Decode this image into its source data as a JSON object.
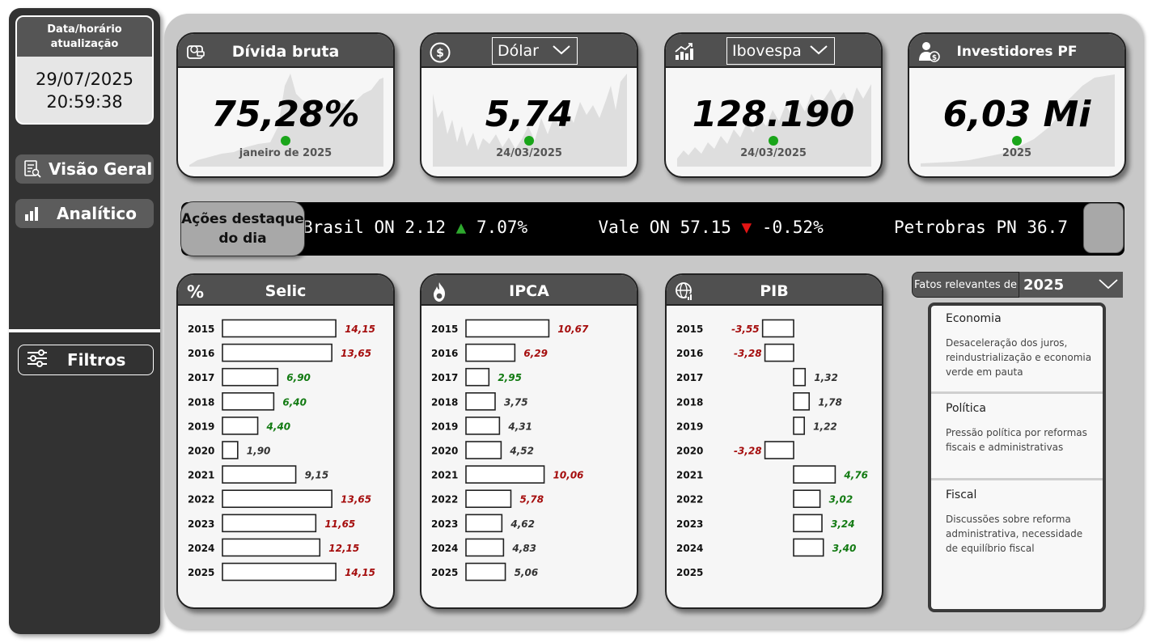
{
  "sidebar": {
    "update_title": "Data/horário atualização",
    "update_title_l1": "Data/horário",
    "update_title_l2": "atualização",
    "date": "29/07/2025",
    "time": "20:59:38",
    "nav": [
      {
        "label": "Visão Geral",
        "icon": "report-search-icon"
      },
      {
        "label": "Analítico",
        "icon": "bar-chart-icon"
      }
    ],
    "filters_label": "Filtros"
  },
  "kpis": [
    {
      "title": "Dívida bruta",
      "value": "75,28%",
      "sub": "janeiro de 2025",
      "icon": "debt-wallet-icon"
    },
    {
      "title": "Dólar",
      "value": "5,74",
      "sub": "24/03/2025",
      "icon": "dollar-coin-icon",
      "dropdown": true
    },
    {
      "title": "Ibovespa",
      "value": "128.190",
      "sub": "24/03/2025",
      "icon": "growth-chart-icon",
      "dropdown": true
    },
    {
      "title": "Investidores PF",
      "value": "6,03 Mi",
      "sub": "2025",
      "icon": "investor-icon"
    }
  ],
  "ticker": {
    "label_l1": "Ações destaque",
    "label_l2": "do dia",
    "items": [
      {
        "text": "Brasil ON 2.12",
        "arrow": "▲",
        "change": "7.07%",
        "dir": "up"
      },
      {
        "text": "Vale ON 57.15",
        "arrow": "▼",
        "change": "-0.52%",
        "dir": "down"
      },
      {
        "text": "Petrobras PN 36.7",
        "arrow": "",
        "change": "",
        "dir": "none"
      }
    ]
  },
  "colors": {
    "high": "#a50d0d",
    "low": "#127a12",
    "neutral": "#333333"
  },
  "bar_charts": [
    {
      "title": "Selic",
      "icon": "percent-icon",
      "years": [
        "2015",
        "2016",
        "2017",
        "2018",
        "2019",
        "2020",
        "2021",
        "2022",
        "2023",
        "2024",
        "2025"
      ],
      "values": [
        14.15,
        13.65,
        6.9,
        6.4,
        4.4,
        1.9,
        9.15,
        13.65,
        11.65,
        12.15,
        14.15
      ],
      "labels": [
        "14,15",
        "13,65",
        "6,90",
        "6,40",
        "4,40",
        "1,90",
        "9,15",
        "13,65",
        "11,65",
        "12,15",
        "14,15"
      ],
      "tones": [
        "high",
        "high",
        "low",
        "low",
        "low",
        "neutral",
        "neutral",
        "high",
        "high",
        "high",
        "high"
      ]
    },
    {
      "title": "IPCA",
      "icon": "fire-coin-icon",
      "years": [
        "2015",
        "2016",
        "2017",
        "2018",
        "2019",
        "2020",
        "2021",
        "2022",
        "2023",
        "2024",
        "2025"
      ],
      "values": [
        10.67,
        6.29,
        2.95,
        3.75,
        4.31,
        4.52,
        10.06,
        5.78,
        4.62,
        4.83,
        5.06
      ],
      "labels": [
        "10,67",
        "6,29",
        "2,95",
        "3,75",
        "4,31",
        "4,52",
        "10,06",
        "5,78",
        "4,62",
        "4,83",
        "5,06"
      ],
      "tones": [
        "high",
        "high",
        "low",
        "neutral",
        "neutral",
        "neutral",
        "high",
        "high",
        "neutral",
        "neutral",
        "neutral"
      ]
    },
    {
      "title": "PIB",
      "icon": "globe-chart-icon",
      "years": [
        "2015",
        "2016",
        "2017",
        "2018",
        "2019",
        "2020",
        "2021",
        "2022",
        "2023",
        "2024",
        "2025"
      ],
      "values": [
        -3.55,
        -3.28,
        1.32,
        1.78,
        1.22,
        -3.28,
        4.76,
        3.02,
        3.24,
        3.4,
        null
      ],
      "labels": [
        "-3,55",
        "-3,28",
        "1,32",
        "1,78",
        "1,22",
        "-3,28",
        "4,76",
        "3,02",
        "3,24",
        "3,40",
        ""
      ],
      "tones": [
        "high",
        "high",
        "neutral",
        "neutral",
        "neutral",
        "high",
        "low",
        "low",
        "low",
        "low",
        "neutral"
      ]
    }
  ],
  "facts": {
    "label": "Fatos relevantes de",
    "year": "2025",
    "items": [
      {
        "title": "Economia",
        "body": "Desaceleração dos juros, reindustrialização e economia verde em pauta"
      },
      {
        "title": "Política",
        "body": "Pressão política por reformas fiscais e administrativas"
      },
      {
        "title": "Fiscal",
        "body": "Discussões sobre reforma administrativa, necessidade de equilíbrio fiscal"
      }
    ]
  }
}
